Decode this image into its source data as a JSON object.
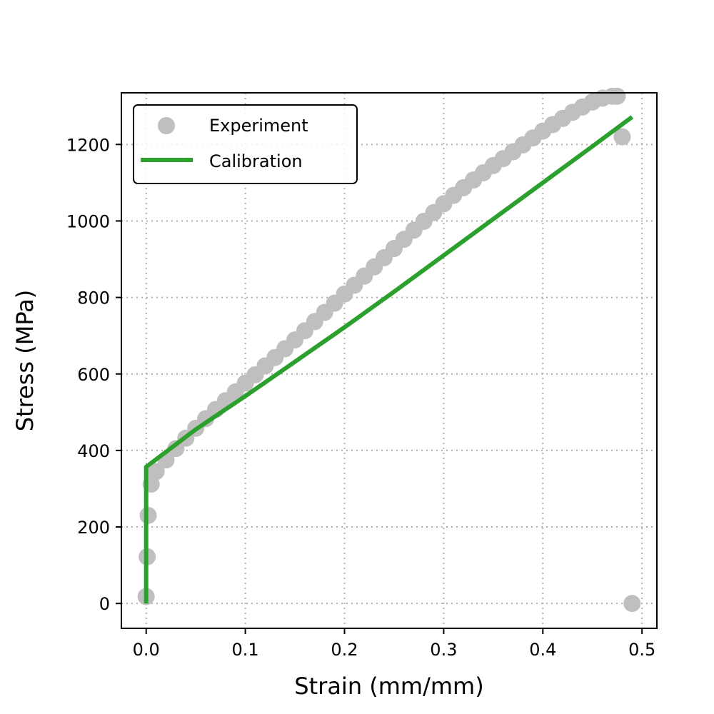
{
  "chart_data": {
    "type": "scatter",
    "title": "",
    "xlabel": "Strain (mm/mm)",
    "ylabel": "Stress (MPa)",
    "xlim": [
      -0.025,
      0.515
    ],
    "ylim": [
      -65,
      1335
    ],
    "xticks": [
      0.0,
      0.1,
      0.2,
      0.3,
      0.4,
      0.5
    ],
    "xtick_labels": [
      "0.0",
      "0.1",
      "0.2",
      "0.3",
      "0.4",
      "0.5"
    ],
    "yticks": [
      0,
      200,
      400,
      600,
      800,
      1000,
      1200
    ],
    "ytick_labels": [
      "0",
      "200",
      "400",
      "600",
      "800",
      "1000",
      "1200"
    ],
    "grid": true,
    "legend_position": "top-left",
    "series": [
      {
        "name": "Experiment",
        "kind": "scatter",
        "color": "#bfbfbf",
        "x": [
          0.0,
          0.001,
          0.002,
          0.005,
          0.01,
          0.02,
          0.03,
          0.04,
          0.05,
          0.06,
          0.07,
          0.08,
          0.09,
          0.1,
          0.11,
          0.12,
          0.13,
          0.14,
          0.15,
          0.16,
          0.17,
          0.18,
          0.19,
          0.2,
          0.21,
          0.22,
          0.23,
          0.24,
          0.25,
          0.26,
          0.27,
          0.28,
          0.29,
          0.3,
          0.31,
          0.32,
          0.33,
          0.34,
          0.35,
          0.36,
          0.37,
          0.38,
          0.39,
          0.4,
          0.41,
          0.42,
          0.43,
          0.44,
          0.45,
          0.46,
          0.47,
          0.475,
          0.48,
          0.49
        ],
        "y": [
          18,
          122,
          230,
          312,
          345,
          375,
          405,
          432,
          458,
          483,
          507,
          530,
          553,
          576,
          598,
          621,
          643,
          666,
          689,
          713,
          737,
          761,
          785,
          809,
          832,
          856,
          880,
          904,
          928,
          952,
          976,
          999,
          1022,
          1045,
          1067,
          1087,
          1107,
          1126,
          1145,
          1163,
          1181,
          1199,
          1217,
          1235,
          1252,
          1268,
          1284,
          1298,
          1311,
          1321,
          1326,
          1326,
          1220,
          0
        ]
      },
      {
        "name": "Calibration",
        "kind": "line",
        "color": "#2ca02c",
        "x": [
          0.0,
          0.0,
          0.05,
          0.1,
          0.15,
          0.2,
          0.25,
          0.3,
          0.35,
          0.4,
          0.45,
          0.49
        ],
        "y": [
          0,
          357,
          455,
          542,
          632,
          722,
          815,
          910,
          1005,
          1100,
          1195,
          1272
        ]
      }
    ]
  }
}
